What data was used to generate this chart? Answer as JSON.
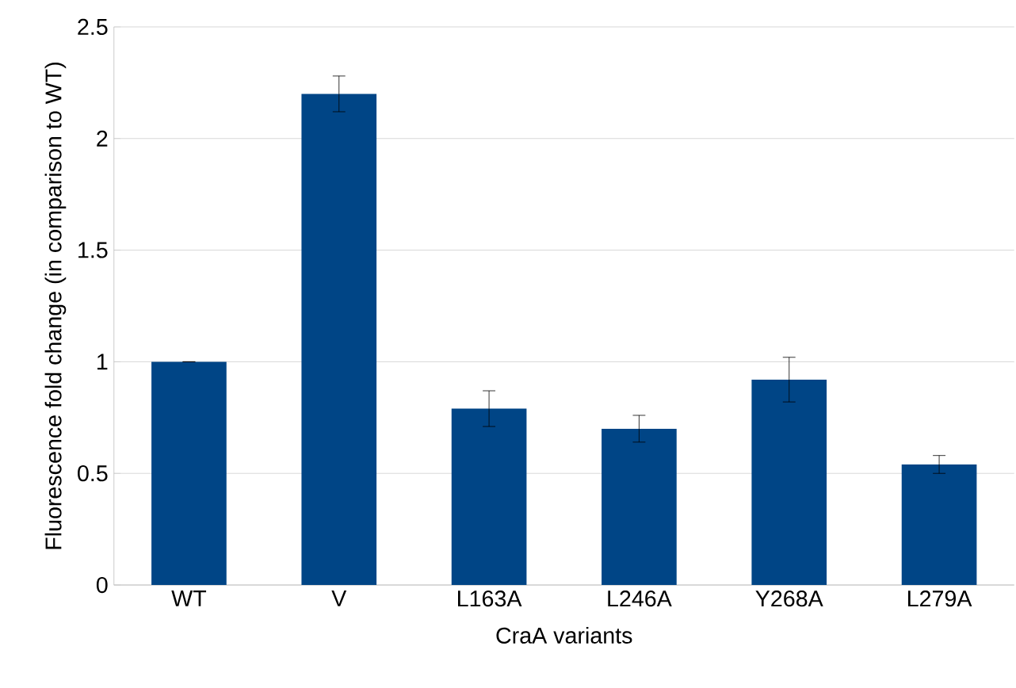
{
  "chart_data": {
    "type": "bar",
    "xlabel": "CraA variants",
    "ylabel": "Fluorescence fold change (in comparison to WT)",
    "categories": [
      "WT",
      "V",
      "L163A",
      "L246A",
      "Y268A",
      "L279A"
    ],
    "values": [
      1.0,
      2.2,
      0.79,
      0.7,
      0.92,
      0.54
    ],
    "errors": [
      0,
      0.08,
      0.08,
      0.06,
      0.1,
      0.04
    ],
    "color": "#004586",
    "ylim": [
      0,
      2.5
    ],
    "yticks": [
      0,
      0.5,
      1,
      1.5,
      2,
      2.5
    ],
    "grid": "y"
  }
}
